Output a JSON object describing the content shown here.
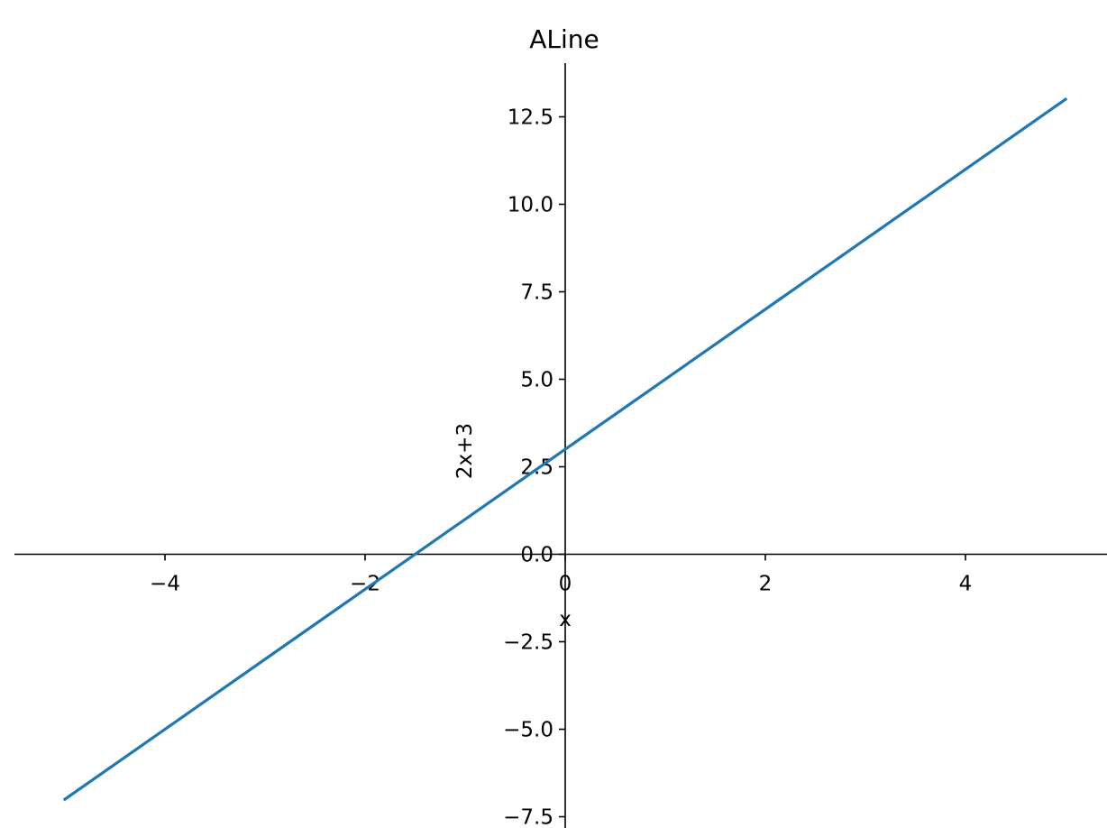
{
  "chart_data": {
    "type": "line",
    "title": "ALine",
    "xlabel": "x",
    "ylabel": "2x+3",
    "xlim": [
      -5.5,
      5.5
    ],
    "ylim": [
      -7.5,
      14
    ],
    "x_ticks": [
      -4,
      -2,
      0,
      2,
      4
    ],
    "x_tick_labels": [
      "−4",
      "−2",
      "0",
      "2",
      "4"
    ],
    "y_ticks": [
      -7.5,
      -5.0,
      -2.5,
      0.0,
      2.5,
      5.0,
      7.5,
      10.0,
      12.5
    ],
    "y_tick_labels": [
      "−7.5",
      "−5.0",
      "−2.5",
      "0.0",
      "2.5",
      "5.0",
      "7.5",
      "10.0",
      "12.5"
    ],
    "spines": "centered-at-origin",
    "grid": false,
    "series": [
      {
        "color": "#1f77b4",
        "x": [
          -5,
          5
        ],
        "y": [
          -7,
          13
        ]
      }
    ]
  }
}
